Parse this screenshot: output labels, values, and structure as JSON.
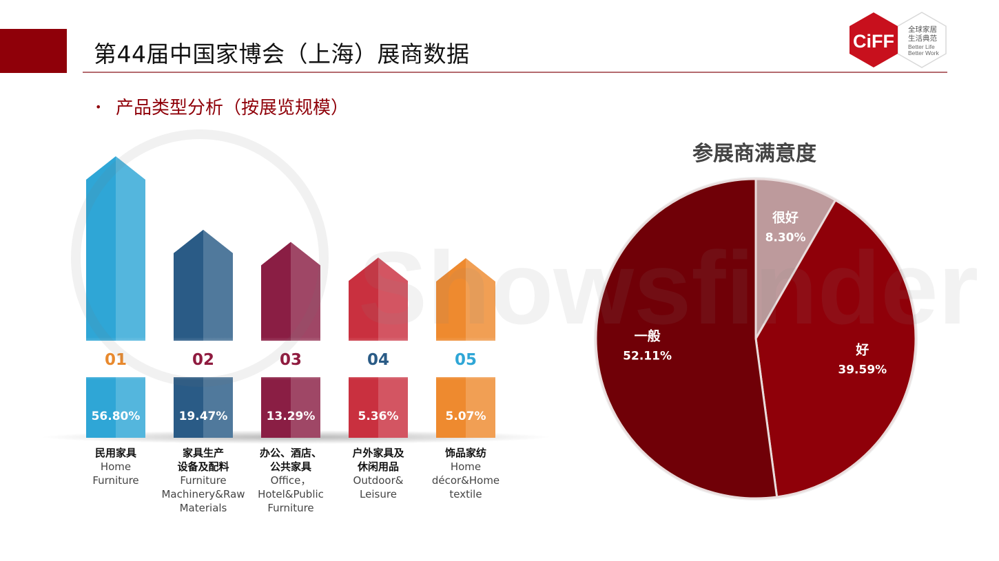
{
  "header": {
    "title": "第44届中国家博会（上海）展商数据",
    "subtitle": "产品类型分析（按展览规模）",
    "bullet": "•"
  },
  "logo": {
    "mark": "CiFF",
    "line1": "全球家居",
    "line2": "生活典范",
    "line3": "Better Life",
    "line4": "Better Work"
  },
  "watermark": {
    "text": "Showsfinder"
  },
  "colors": {
    "accent": "#8f0009",
    "bar_colors": [
      "#2fa6d6",
      "#2a5b86",
      "#8a1e44",
      "#c9303f",
      "#ee8a2f"
    ],
    "num_colors": [
      "#e8892e",
      "#8f1b3f",
      "#8f1b3f",
      "#2a5b86",
      "#2fa6d6"
    ],
    "pie_colors": [
      "#bd9a9c",
      "#8f0009",
      "#700007"
    ]
  },
  "chart_data": [
    {
      "type": "bar",
      "title": "",
      "xlabel": "",
      "ylabel": "",
      "categories": [
        "01",
        "02",
        "03",
        "04",
        "05"
      ],
      "values": [
        56.8,
        19.47,
        13.29,
        5.36,
        5.07
      ],
      "value_labels": [
        "56.80%",
        "19.47%",
        "13.29%",
        "5.36%",
        "5.07%"
      ],
      "labels_zh": [
        [
          "民用家具"
        ],
        [
          "家具生产",
          "设备及配料"
        ],
        [
          "办公、酒店、",
          "公共家具"
        ],
        [
          "户外家具及",
          "休闲用品"
        ],
        [
          "饰品家纺"
        ]
      ],
      "labels_en": [
        [
          "Home",
          "Furniture"
        ],
        [
          "Furniture",
          "Machinery&Raw",
          "Materials"
        ],
        [
          "Office，",
          "Hotel&Public",
          "Furniture"
        ],
        [
          "Outdoor&",
          "Leisure"
        ],
        [
          "Home",
          "décor&Home",
          "textile"
        ]
      ]
    },
    {
      "type": "pie",
      "title": "参展商满意度",
      "slices": [
        {
          "label": "很好",
          "value": 8.3,
          "value_label": "8.30%"
        },
        {
          "label": "好",
          "value": 39.59,
          "value_label": "39.59%"
        },
        {
          "label": "一般",
          "value": 52.11,
          "value_label": "52.11%"
        }
      ],
      "start": "12 o'clock",
      "direction": "clockwise"
    }
  ]
}
